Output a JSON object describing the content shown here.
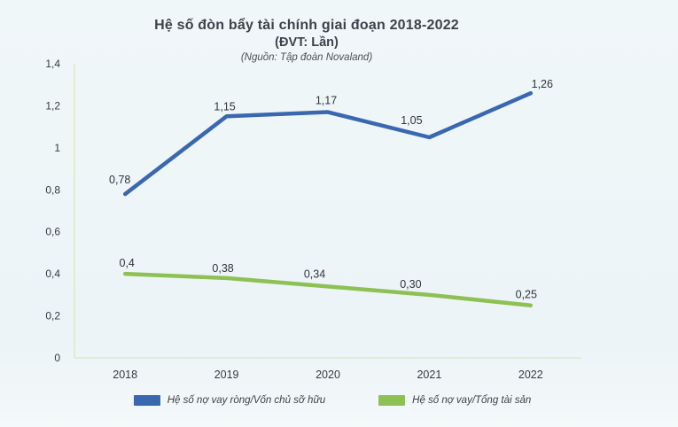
{
  "header": {
    "title": "Hệ số đòn bẩy tài chính giai đoạn 2018-2022",
    "subtitle": "(ĐVT: Lần)",
    "source": "(Nguồn: Tập đoàn Novaland)"
  },
  "chart_data": {
    "type": "line",
    "title": "Hệ số đòn bẩy tài chính giai đoạn 2018-2022 (ĐVT: Lần)",
    "categories": [
      "2018",
      "2019",
      "2020",
      "2021",
      "2022"
    ],
    "series": [
      {
        "name": "Hệ số nợ vay ròng/Vốn chủ sỡ hữu",
        "color": "#3a68b0",
        "values": [
          0.78,
          1.15,
          1.17,
          1.05,
          1.26
        ],
        "labels": [
          "0,78",
          "1,15",
          "1,17",
          "1,05",
          "1,26"
        ]
      },
      {
        "name": "Hệ số nợ vay/Tổng tài sản",
        "color": "#8ec154",
        "values": [
          0.4,
          0.38,
          0.34,
          0.3,
          0.25
        ],
        "labels": [
          "0,4",
          "0,38",
          "0,34",
          "0,30",
          "0,25"
        ]
      }
    ],
    "xlabel": "",
    "ylabel": "",
    "ylim": [
      0,
      1.4
    ],
    "y_ticks": [
      0,
      0.2,
      0.4,
      0.6,
      0.8,
      1,
      1.2,
      1.4
    ],
    "y_tick_labels": [
      "0",
      "0,2",
      "0,4",
      "0,6",
      "0,8",
      "1",
      "1,2",
      "1,4"
    ],
    "grid": false,
    "legend_position": "bottom",
    "axis_color": "#dde9c8",
    "tick_text_color": "#343a42",
    "data_label_color": "#2f343b"
  }
}
